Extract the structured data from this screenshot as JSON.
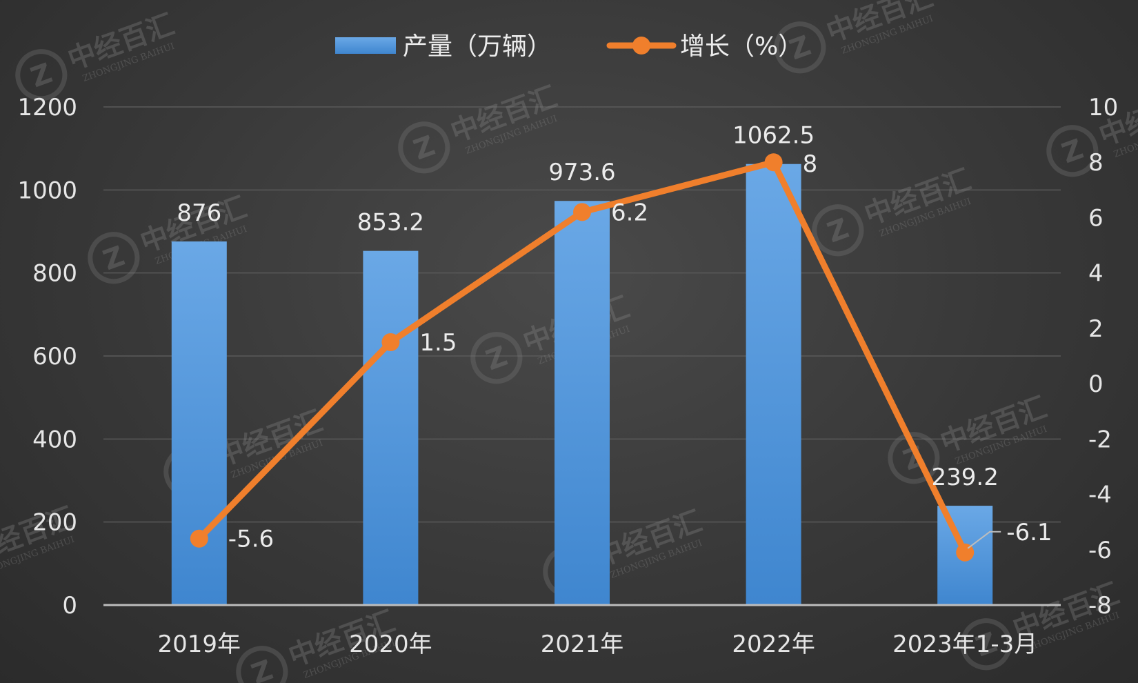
{
  "chart_data": {
    "type": "bar+line",
    "categories": [
      "2019年",
      "2020年",
      "2021年",
      "2022年",
      "2023年1-3月"
    ],
    "series": [
      {
        "name": "产量（万辆）",
        "type": "bar",
        "axis": "left",
        "color": "#4f93d8",
        "values": [
          876,
          853.2,
          973.6,
          1062.5,
          239.2
        ],
        "labels": [
          "876",
          "853.2",
          "973.6",
          "1062.5",
          "239.2"
        ]
      },
      {
        "name": "增长（%）",
        "type": "line",
        "axis": "right",
        "color": "#f07f2c",
        "values": [
          -5.6,
          1.5,
          6.2,
          8,
          -6.1
        ],
        "labels": [
          "-5.6",
          "1.5",
          "6.2",
          "8",
          "-6.1"
        ]
      }
    ],
    "y_left": {
      "range": [
        0,
        1200
      ],
      "ticks": [
        "0",
        "200",
        "400",
        "600",
        "800",
        "1000",
        "1200"
      ]
    },
    "y_right": {
      "range": [
        -8,
        10
      ],
      "ticks": [
        "-8",
        "-6",
        "-4",
        "-2",
        "0",
        "2",
        "4",
        "6",
        "8",
        "10"
      ]
    },
    "grid": true,
    "legend_position": "top-center"
  },
  "watermark": {
    "text": "中经百汇",
    "subtext": "ZHONGJING BAIHUI",
    "logo_letter": "Z"
  },
  "colors": {
    "background": "#3a3a3a",
    "grid": "#5a5a5a",
    "axis": "#bdbdbd"
  }
}
